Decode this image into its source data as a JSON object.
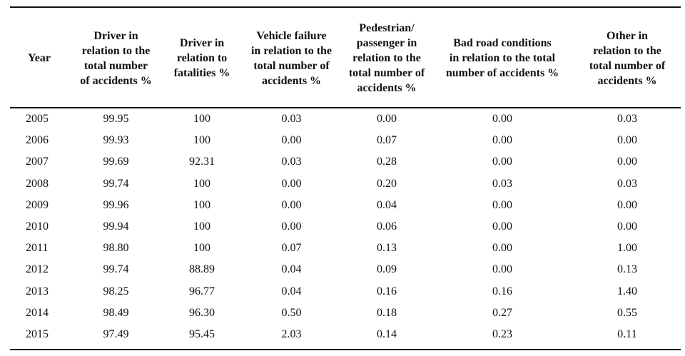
{
  "table": {
    "columns": [
      [
        "Year"
      ],
      [
        "Driver in",
        "relation to the",
        "total number",
        "of accidents %"
      ],
      [
        "Driver in",
        "relation to",
        "fatalities %"
      ],
      [
        "Vehicle failure",
        "in relation to the",
        "total number of",
        "accidents %"
      ],
      [
        "Pedestrian/",
        "passenger in",
        "relation to the",
        "total number of",
        "accidents %"
      ],
      [
        "Bad road conditions",
        "in relation to the total",
        "number of accidents %"
      ],
      [
        "Other in",
        "relation to the",
        "total number of",
        "accidents %"
      ]
    ],
    "rows": [
      [
        "2005",
        "99.95",
        "100",
        "0.03",
        "0.00",
        "0.00",
        "0.03"
      ],
      [
        "2006",
        "99.93",
        "100",
        "0.00",
        "0.07",
        "0.00",
        "0.00"
      ],
      [
        "2007",
        "99.69",
        "92.31",
        "0.03",
        "0.28",
        "0.00",
        "0.00"
      ],
      [
        "2008",
        "99.74",
        "100",
        "0.00",
        "0.20",
        "0.03",
        "0.03"
      ],
      [
        "2009",
        "99.96",
        "100",
        "0.00",
        "0.04",
        "0.00",
        "0.00"
      ],
      [
        "2010",
        "99.94",
        "100",
        "0.00",
        "0.06",
        "0.00",
        "0.00"
      ],
      [
        "2011",
        "98.80",
        "100",
        "0.07",
        "0.13",
        "0.00",
        "1.00"
      ],
      [
        "2012",
        "99.74",
        "88.89",
        "0.04",
        "0.09",
        "0.00",
        "0.13"
      ],
      [
        "2013",
        "98.25",
        "96.77",
        "0.04",
        "0.16",
        "0.16",
        "1.40"
      ],
      [
        "2014",
        "98.49",
        "96.30",
        "0.50",
        "0.18",
        "0.27",
        "0.55"
      ],
      [
        "2015",
        "97.49",
        "95.45",
        "2.03",
        "0.14",
        "0.23",
        "0.11"
      ]
    ]
  }
}
